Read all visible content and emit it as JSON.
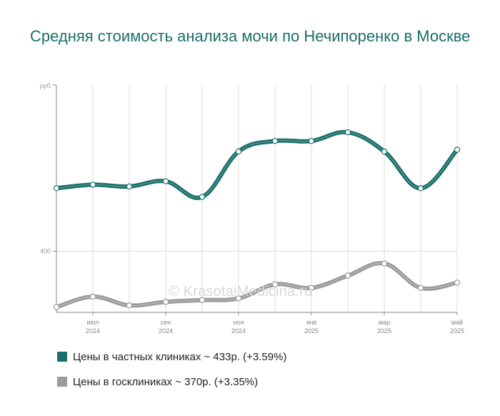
{
  "title": "Средняя стоимость анализа мочи по Нечипоренко в Москве",
  "watermark": "© KrasotaiMedicina.ru",
  "legend": [
    {
      "label": "Цены в частных клиниках ~ 433р. (+3.59%)",
      "color": "#1b6f6a"
    },
    {
      "label": "Цены в госклиниках ~ 370р. (+3.35%)",
      "color": "#9b9b9b"
    }
  ],
  "chart_data": {
    "type": "line",
    "y_unit_label": "руб.",
    "y_tick_labels": [
      "400"
    ],
    "x_ticks": [
      {
        "month": "июл",
        "year": "2024"
      },
      {
        "month": "сен",
        "year": "2024"
      },
      {
        "month": "ноя",
        "year": "2024"
      },
      {
        "month": "янв",
        "year": "2025"
      },
      {
        "month": "мар",
        "year": "2025"
      },
      {
        "month": "май",
        "year": "2025"
      }
    ],
    "x": [
      "2024-06",
      "2024-07",
      "2024-08",
      "2024-09",
      "2024-10",
      "2024-11",
      "2024-12",
      "2025-01",
      "2025-02",
      "2025-03",
      "2025-04",
      "2025-05"
    ],
    "series": [
      {
        "name": "Цены в частных клиниках",
        "color": "#1b6f6a",
        "values": [
          436,
          438,
          437,
          440,
          431,
          457,
          463,
          463,
          468,
          457,
          436,
          458
        ]
      },
      {
        "name": "Цены в госклиниках",
        "color": "#9b9b9b",
        "values": [
          368,
          374,
          369,
          371,
          372,
          373,
          381,
          379,
          386,
          393,
          379,
          382
        ]
      }
    ],
    "ylim": [
      365,
      495
    ],
    "grid": true,
    "legend_position": "bottom-left"
  }
}
